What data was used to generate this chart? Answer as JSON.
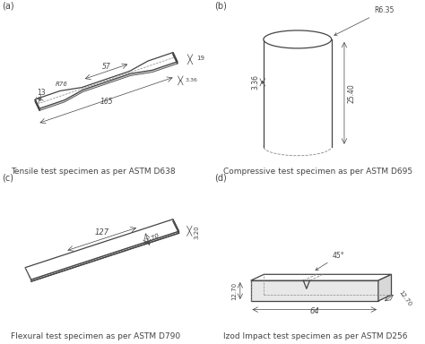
{
  "background_color": "#ffffff",
  "caption_fontsize": 6.5,
  "panel_label_fontsize": 7,
  "dim_fontsize": 5.5,
  "captions": {
    "a": "Tensile test specimen as per ASTM D638",
    "b": "Compressive test specimen as per ASTM D695",
    "c": "Flexural test specimen as per ASTM D790",
    "d": "Izod Impact test specimen as per ASTM D256"
  },
  "line_color": "#444444",
  "dashed_color": "#888888"
}
